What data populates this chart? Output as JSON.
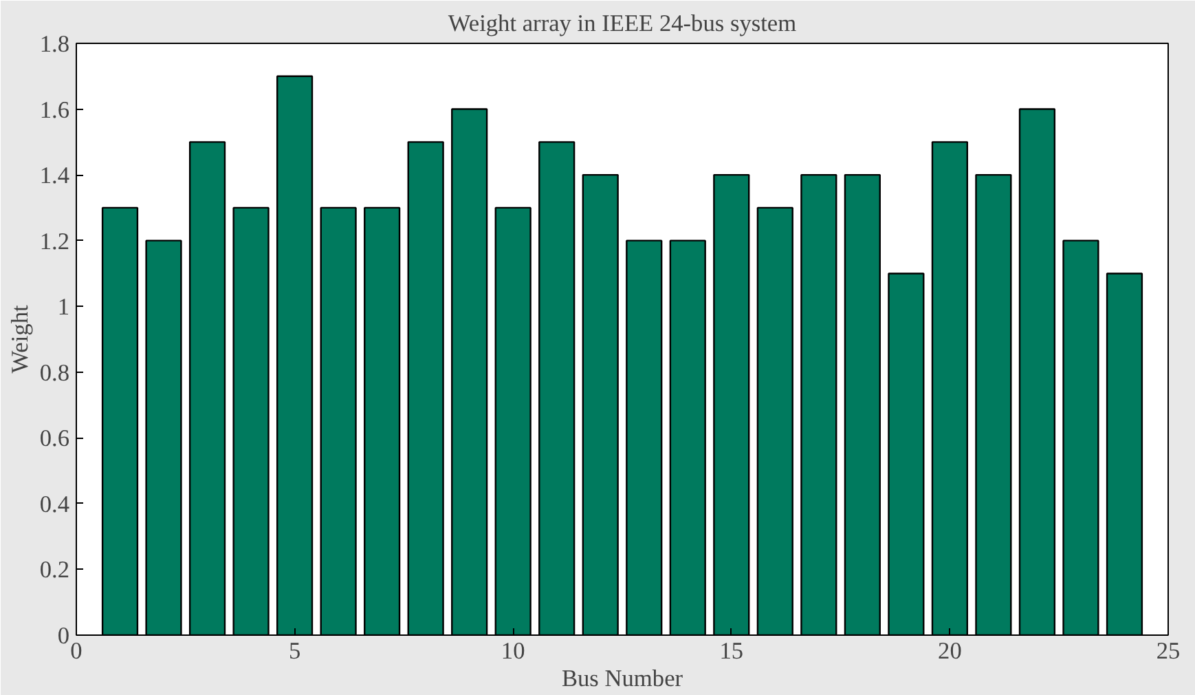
{
  "chart_data": {
    "type": "bar",
    "title": "Weight array in IEEE 24-bus system",
    "xlabel": "Bus Number",
    "ylabel": "Weight",
    "x": [
      1,
      2,
      3,
      4,
      5,
      6,
      7,
      8,
      9,
      10,
      11,
      12,
      13,
      14,
      15,
      16,
      17,
      18,
      19,
      20,
      21,
      22,
      23,
      24
    ],
    "values": [
      1.3,
      1.2,
      1.5,
      1.3,
      1.7,
      1.3,
      1.3,
      1.5,
      1.6,
      1.3,
      1.5,
      1.4,
      1.2,
      1.2,
      1.4,
      1.3,
      1.4,
      1.4,
      1.1,
      1.5,
      1.4,
      1.6,
      1.2,
      1.1
    ],
    "color": "#007a5e",
    "xlim": [
      0,
      25
    ],
    "xticks": [
      0,
      5,
      10,
      15,
      20,
      25
    ],
    "ylim": [
      0,
      1.8
    ],
    "yticks": [
      0,
      0.2,
      0.4,
      0.6,
      0.8,
      1,
      1.2,
      1.4,
      1.6,
      1.8
    ],
    "grid": false
  }
}
